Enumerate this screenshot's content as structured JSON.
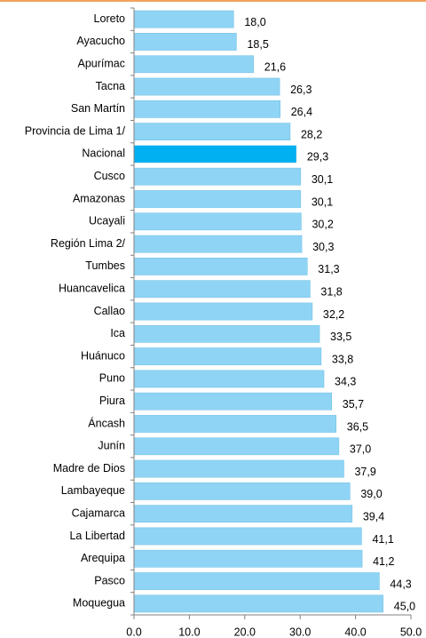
{
  "chart_data": {
    "type": "bar",
    "orientation": "horizontal",
    "categories": [
      "Loreto",
      "Ayacucho",
      "Apurímac",
      "Tacna",
      "San Martín",
      "Provincia de Lima 1/",
      "Nacional",
      "Cusco",
      "Amazonas",
      "Ucayali",
      "Región Lima 2/",
      "Tumbes",
      "Huancavelica",
      "Callao",
      "Ica",
      "Huánuco",
      "Puno",
      "Piura",
      "Áncash",
      "Junín",
      "Madre de Dios",
      "Lambayeque",
      "Cajamarca",
      "La Libertad",
      "Arequipa",
      "Pasco",
      "Moquegua"
    ],
    "values": [
      18.0,
      18.5,
      21.6,
      26.3,
      26.4,
      28.2,
      29.3,
      30.1,
      30.1,
      30.2,
      30.3,
      31.3,
      31.8,
      32.2,
      33.5,
      33.8,
      34.3,
      35.7,
      36.5,
      37.0,
      37.9,
      39.0,
      39.4,
      41.1,
      41.2,
      44.3,
      45.0
    ],
    "value_labels": [
      "18,0",
      "18,5",
      "21,6",
      "26,3",
      "26,4",
      "28,2",
      "29,3",
      "30,1",
      "30,1",
      "30,2",
      "30,3",
      "31,3",
      "31,8",
      "32,2",
      "33,5",
      "33,8",
      "34,3",
      "35,7",
      "36,5",
      "37,0",
      "37,9",
      "39,0",
      "39,4",
      "41,1",
      "41,2",
      "44,3",
      "45,0"
    ],
    "colors": [
      "#8fd4f4",
      "#8fd4f4",
      "#8fd4f4",
      "#8fd4f4",
      "#8fd4f4",
      "#8fd4f4",
      "#00b0f0",
      "#8fd4f4",
      "#8fd4f4",
      "#8fd4f4",
      "#8fd4f4",
      "#8fd4f4",
      "#8fd4f4",
      "#8fd4f4",
      "#8fd4f4",
      "#8fd4f4",
      "#8fd4f4",
      "#8fd4f4",
      "#8fd4f4",
      "#8fd4f4",
      "#8fd4f4",
      "#8fd4f4",
      "#8fd4f4",
      "#8fd4f4",
      "#8fd4f4",
      "#8fd4f4",
      "#8fd4f4"
    ],
    "xlim": [
      0,
      50
    ],
    "xticks": [
      {
        "value": 0,
        "label": "0.0"
      },
      {
        "value": 10,
        "label": "10.0"
      },
      {
        "value": 20,
        "label": "20.0"
      },
      {
        "value": 30,
        "label": "30.0"
      },
      {
        "value": 40,
        "label": "40.0"
      },
      {
        "value": 50,
        "label": "50.0"
      }
    ],
    "grid": false
  }
}
